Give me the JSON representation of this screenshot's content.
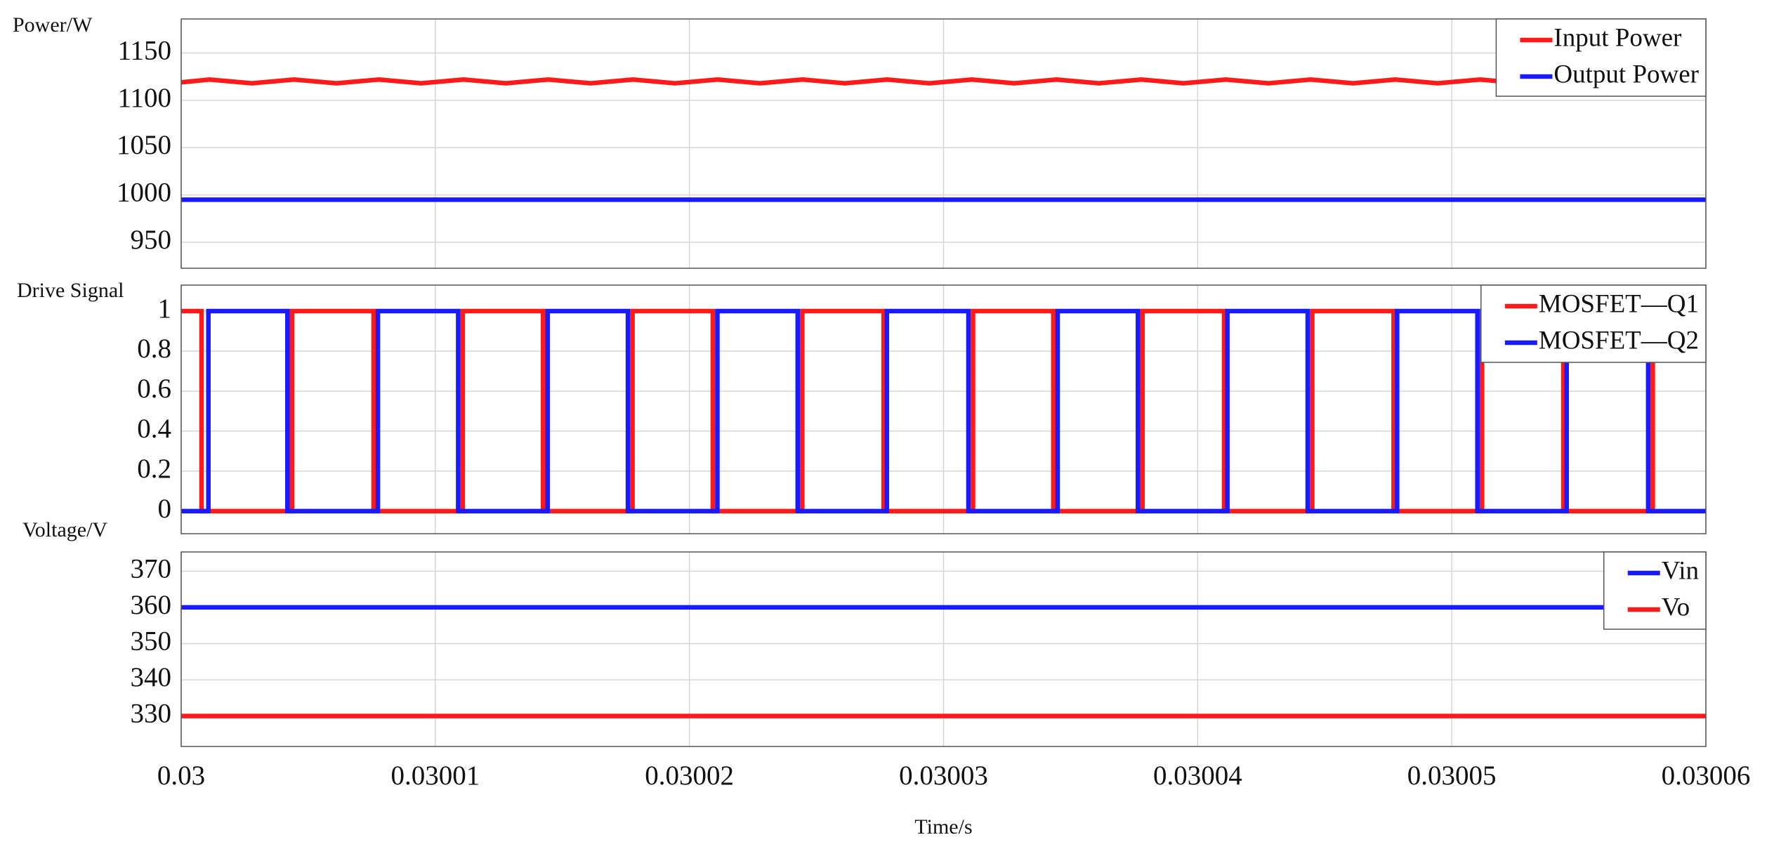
{
  "chart_data": [
    {
      "type": "line",
      "ylabel": "Power/W",
      "xlim": [
        0.03,
        0.03006
      ],
      "ylim": [
        922.5,
        1186
      ],
      "yticks": [
        950,
        1000,
        1050,
        1100,
        1150
      ],
      "grid": true,
      "legend": "upper right",
      "series": [
        {
          "name": "Input Power",
          "color": "#ff1a1a",
          "x": [
            0.03,
            0.03000111,
            0.03000278,
            0.03000444,
            0.03000611,
            0.03000778,
            0.03000944,
            0.03001111,
            0.03001278,
            0.03001444,
            0.03001611,
            0.03001778,
            0.03001944,
            0.03002111,
            0.03002278,
            0.03002444,
            0.03002611,
            0.03002778,
            0.03002944,
            0.03003111,
            0.03003278,
            0.03003444,
            0.03003611,
            0.03003778,
            0.03003944,
            0.03004111,
            0.03004278,
            0.03004444,
            0.03004611,
            0.03004778,
            0.03004944,
            0.03005111,
            0.03005278,
            0.03005444,
            0.03005611,
            0.03005778,
            0.03005944,
            0.03006
          ],
          "values": [
            1119,
            1122,
            1118,
            1122,
            1118,
            1122,
            1118,
            1122,
            1118,
            1122,
            1118,
            1122,
            1118,
            1122,
            1118,
            1122,
            1118,
            1122,
            1118,
            1122,
            1118,
            1122,
            1118,
            1122,
            1118,
            1122,
            1118,
            1122,
            1118,
            1122,
            1118,
            1122,
            1118,
            1122,
            1118,
            1122,
            1118,
            1119
          ]
        },
        {
          "name": "Output Power",
          "color": "#1a1aff",
          "x": [
            0.03,
            0.03006
          ],
          "values": [
            995,
            995
          ]
        }
      ]
    },
    {
      "type": "line",
      "ylabel": "Drive Signal",
      "xlim": [
        0.03,
        0.03006
      ],
      "ylim": [
        -0.113,
        1.13
      ],
      "yticks": [
        0,
        0.2,
        0.4,
        0.6,
        0.8,
        1
      ],
      "grid": true,
      "legend": "upper right",
      "series": [
        {
          "name": "MOSFET—Q1",
          "color": "#ff1a1a",
          "x": [
            0.03,
            0.0300008,
            0.0300008,
            0.03000436,
            0.03000436,
            0.03000757,
            0.03000757,
            0.03001108,
            0.03001108,
            0.03001424,
            0.03001424,
            0.03001776,
            0.03001776,
            0.03002092,
            0.03002092,
            0.03002444,
            0.03002444,
            0.03002764,
            0.03002764,
            0.03003116,
            0.03003116,
            0.03003432,
            0.03003432,
            0.03003783,
            0.03003783,
            0.03004104,
            0.03004104,
            0.03004451,
            0.03004451,
            0.03004771,
            0.03004771,
            0.03005119,
            0.03005119,
            0.03005439,
            0.03005439,
            0.03005791,
            0.03005791,
            0.03006
          ],
          "values": [
            1,
            1,
            0,
            0,
            1,
            1,
            0,
            0,
            1,
            1,
            0,
            0,
            1,
            1,
            0,
            0,
            1,
            1,
            0,
            0,
            1,
            1,
            0,
            0,
            1,
            1,
            0,
            0,
            1,
            1,
            0,
            0,
            1,
            1,
            0,
            0,
            1,
            1
          ]
        },
        {
          "name": "MOSFET—Q2",
          "color": "#1a1aff",
          "x": [
            0.03,
            0.03000107,
            0.03000107,
            0.03000418,
            0.03000418,
            0.03000774,
            0.03000774,
            0.0300109,
            0.0300109,
            0.03001442,
            0.03001442,
            0.03001758,
            0.03001758,
            0.0300211,
            0.0300211,
            0.03002426,
            0.03002426,
            0.03002777,
            0.03002777,
            0.03003098,
            0.03003098,
            0.03003449,
            0.03003449,
            0.03003765,
            0.03003765,
            0.03004117,
            0.03004117,
            0.03004433,
            0.03004433,
            0.03004785,
            0.03004785,
            0.03005101,
            0.03005101,
            0.03005452,
            0.03005452,
            0.03005773,
            0.03005773,
            0.03006
          ],
          "values": [
            0,
            0,
            1,
            1,
            0,
            0,
            1,
            1,
            0,
            0,
            1,
            1,
            0,
            0,
            1,
            1,
            0,
            0,
            1,
            1,
            0,
            0,
            1,
            1,
            0,
            0,
            1,
            1,
            0,
            0,
            1,
            1,
            0,
            0,
            1,
            1,
            0,
            0
          ]
        }
      ]
    },
    {
      "type": "line",
      "ylabel": "Voltage/V",
      "xlabel": "Time/s",
      "xlim": [
        0.03,
        0.03006
      ],
      "xticks": [
        0.03,
        0.03001,
        0.03002,
        0.03003,
        0.03004,
        0.03005,
        0.03006
      ],
      "ylim": [
        321.6,
        375.3
      ],
      "yticks": [
        330,
        340,
        350,
        360,
        370
      ],
      "grid": true,
      "legend": "upper right",
      "series": [
        {
          "name": "Vin",
          "color": "#1a1aff",
          "x": [
            0.03,
            0.03006
          ],
          "values": [
            360,
            360
          ]
        },
        {
          "name": "Vo",
          "color": "#ff1a1a",
          "x": [
            0.03,
            0.03006
          ],
          "values": [
            330,
            330
          ]
        }
      ]
    }
  ]
}
